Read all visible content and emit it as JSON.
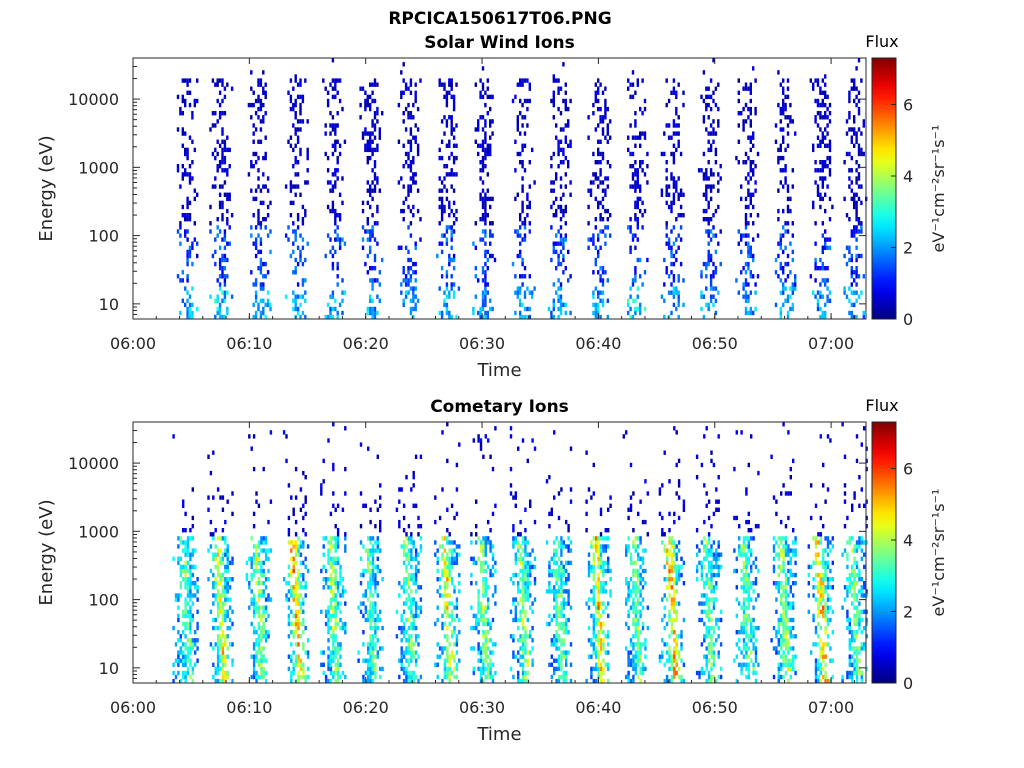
{
  "figure_title": "RPCICA150617T06.PNG",
  "chart_data": [
    {
      "type": "heatmap",
      "title": "Solar Wind Ions",
      "xlabel": "Time",
      "ylabel": "Energy (eV)",
      "x_ticks": [
        "06:00",
        "06:10",
        "06:20",
        "06:30",
        "06:40",
        "06:50",
        "07:00"
      ],
      "x_tick_minutes": [
        0,
        10,
        20,
        30,
        40,
        50,
        60
      ],
      "xlim_minutes": [
        0,
        63
      ],
      "y_scale": "log",
      "ylim": [
        6,
        40000
      ],
      "y_ticks": [
        10,
        100,
        1000,
        10000
      ],
      "y_tick_labels": [
        "10",
        "100",
        "1000",
        "10000"
      ],
      "colorbar": {
        "title": "Flux",
        "label": "eV⁻¹cm⁻²sr⁻¹s⁻¹",
        "range": [
          0,
          7.3
        ],
        "ticks": [
          0,
          2,
          4,
          6
        ],
        "tick_labels": [
          "0",
          "2",
          "4",
          "6"
        ],
        "colormap": "jet"
      },
      "sweep_minutes": [
        4.5,
        7.5,
        10.8,
        14,
        17.2,
        20.4,
        23.7,
        27,
        30.1,
        33.5,
        36.6,
        40,
        43.2,
        46.3,
        49.5,
        52.7,
        55.9,
        59.1,
        62
      ],
      "sweep_peak_flux": [
        2.8,
        3.2,
        2.9,
        2.8,
        2.7,
        2.8,
        2.6,
        2.7,
        2.6,
        2.7,
        2.6,
        2.7,
        3.4,
        2.7,
        2.6,
        2.6,
        2.7,
        2.6,
        2.6
      ],
      "grid": false
    },
    {
      "type": "heatmap",
      "title": "Cometary Ions",
      "xlabel": "Time",
      "ylabel": "Energy (eV)",
      "x_ticks": [
        "06:00",
        "06:10",
        "06:20",
        "06:30",
        "06:40",
        "06:50",
        "07:00"
      ],
      "x_tick_minutes": [
        0,
        10,
        20,
        30,
        40,
        50,
        60
      ],
      "xlim_minutes": [
        0,
        63
      ],
      "y_scale": "log",
      "ylim": [
        6,
        40000
      ],
      "y_ticks": [
        10,
        100,
        1000,
        10000
      ],
      "y_tick_labels": [
        "10",
        "100",
        "1000",
        "10000"
      ],
      "colorbar": {
        "title": "Flux",
        "label": "eV⁻¹cm⁻²sr⁻¹s⁻¹",
        "range": [
          0,
          7.3
        ],
        "ticks": [
          0,
          2,
          4,
          6
        ],
        "tick_labels": [
          "0",
          "2",
          "4",
          "6"
        ],
        "colormap": "jet"
      },
      "sweep_minutes": [
        4.5,
        7.5,
        10.8,
        14,
        17.2,
        20.4,
        23.7,
        27,
        30.1,
        33.5,
        36.6,
        40,
        43.2,
        46.3,
        49.5,
        52.7,
        55.9,
        59.1,
        62
      ],
      "sweep_peak_flux": [
        4.2,
        5.4,
        4.8,
        6.2,
        4.5,
        4.0,
        4.3,
        5.5,
        4.4,
        4.5,
        4.2,
        5.8,
        4.5,
        6.3,
        4.2,
        4.3,
        4.8,
        6.2,
        4.3
      ],
      "grid": false
    }
  ]
}
